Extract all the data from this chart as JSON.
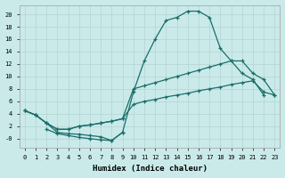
{
  "background_color": "#caeaea",
  "grid_color": "#b8d8d8",
  "line_color": "#1a6e6a",
  "line1_x": [
    0,
    1,
    2,
    3,
    4,
    5,
    6,
    7,
    8,
    9,
    10,
    11,
    12,
    13,
    14,
    15,
    16,
    17,
    18,
    19,
    20,
    21,
    22
  ],
  "line1_y": [
    4.5,
    3.8,
    2.5,
    1.0,
    0.8,
    0.7,
    0.5,
    0.3,
    -0.3,
    1.0,
    7.5,
    12.5,
    16.0,
    19.0,
    19.5,
    20.5,
    20.5,
    19.5,
    14.5,
    12.5,
    10.5,
    9.5,
    7.0
  ],
  "line2_x": [
    0,
    1,
    2,
    3,
    4,
    5,
    6,
    7,
    8,
    9,
    10,
    11,
    12,
    13,
    14,
    15,
    16,
    17,
    18,
    19,
    20,
    21,
    22,
    23
  ],
  "line2_y": [
    4.5,
    3.8,
    2.5,
    1.5,
    1.5,
    2.0,
    2.2,
    2.5,
    2.8,
    3.2,
    8.0,
    8.5,
    9.0,
    9.5,
    10.0,
    10.5,
    11.0,
    11.5,
    12.0,
    12.5,
    12.5,
    10.5,
    9.5,
    7.0
  ],
  "line3_x": [
    0,
    1,
    2,
    3,
    4,
    5,
    6,
    7,
    8,
    9,
    10,
    11,
    12,
    13,
    14,
    15,
    16,
    17,
    18,
    19,
    20,
    21,
    22,
    23
  ],
  "line3_y": [
    4.5,
    3.8,
    2.5,
    1.5,
    1.5,
    2.0,
    2.2,
    2.5,
    2.8,
    3.2,
    5.5,
    6.0,
    6.3,
    6.7,
    7.0,
    7.3,
    7.7,
    8.0,
    8.3,
    8.7,
    9.0,
    9.3,
    7.5,
    7.0
  ],
  "line4_x": [
    2,
    3,
    4,
    5,
    6,
    7,
    8,
    9
  ],
  "line4_y": [
    1.5,
    0.8,
    0.5,
    0.2,
    0.0,
    -0.2,
    -0.3,
    1.0
  ],
  "xlim": [
    -0.5,
    23.5
  ],
  "ylim": [
    -1.5,
    21.5
  ],
  "xticks": [
    0,
    1,
    2,
    3,
    4,
    5,
    6,
    7,
    8,
    9,
    10,
    11,
    12,
    13,
    14,
    15,
    16,
    17,
    18,
    19,
    20,
    21,
    22,
    23
  ],
  "yticks": [
    0,
    2,
    4,
    6,
    8,
    10,
    12,
    14,
    16,
    18,
    20
  ],
  "ytick_labels": [
    "-0",
    "2",
    "4",
    "6",
    "8",
    "10",
    "12",
    "14",
    "16",
    "18",
    "20"
  ],
  "xlabel": "Humidex (Indice chaleur)"
}
